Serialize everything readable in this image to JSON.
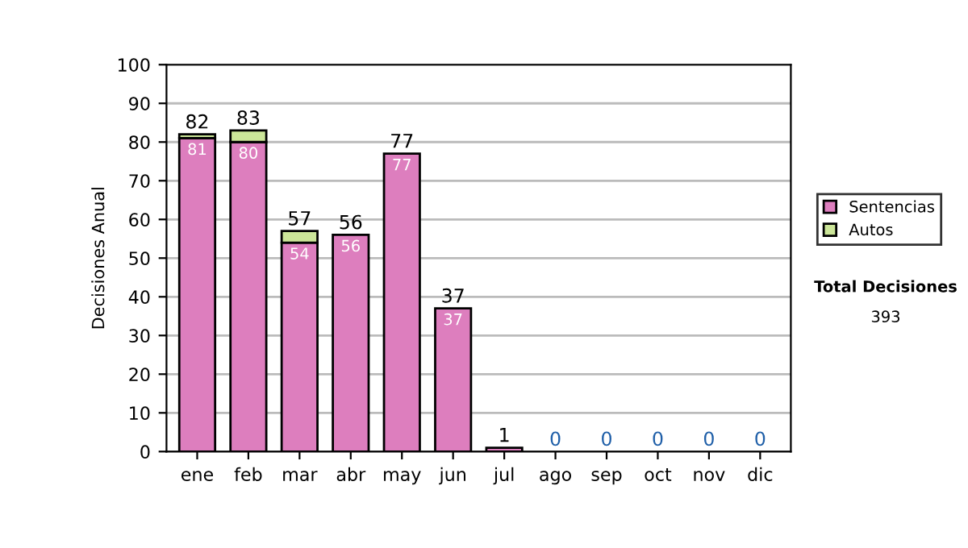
{
  "chart_data": {
    "type": "bar",
    "stacked": true,
    "ylabel": "Decisiones Anual",
    "categories": [
      "ene",
      "feb",
      "mar",
      "abr",
      "may",
      "jun",
      "jul",
      "ago",
      "sep",
      "oct",
      "nov",
      "dic"
    ],
    "series": [
      {
        "name": "Sentencias",
        "color": "#dd7ebe",
        "values": [
          81,
          80,
          54,
          56,
          77,
          37,
          1,
          0,
          0,
          0,
          0,
          0
        ],
        "value_labels": [
          "81",
          "80",
          "54",
          "56",
          "77",
          "37",
          null,
          null,
          null,
          null,
          null,
          null
        ]
      },
      {
        "name": "Autos",
        "color": "#cce699",
        "values": [
          1,
          3,
          3,
          0,
          0,
          0,
          0,
          0,
          0,
          0,
          0,
          0
        ]
      }
    ],
    "totals": [
      "82",
      "83",
      "57",
      "56",
      "77",
      "37",
      "1",
      "0",
      "0",
      "0",
      "0",
      "0"
    ],
    "ylim": [
      0,
      100
    ],
    "yticks": [
      0,
      10,
      20,
      30,
      40,
      50,
      60,
      70,
      80,
      90,
      100
    ],
    "grid": "y",
    "legend": "right",
    "annotations": [
      "Total Decisiones",
      "393"
    ]
  }
}
